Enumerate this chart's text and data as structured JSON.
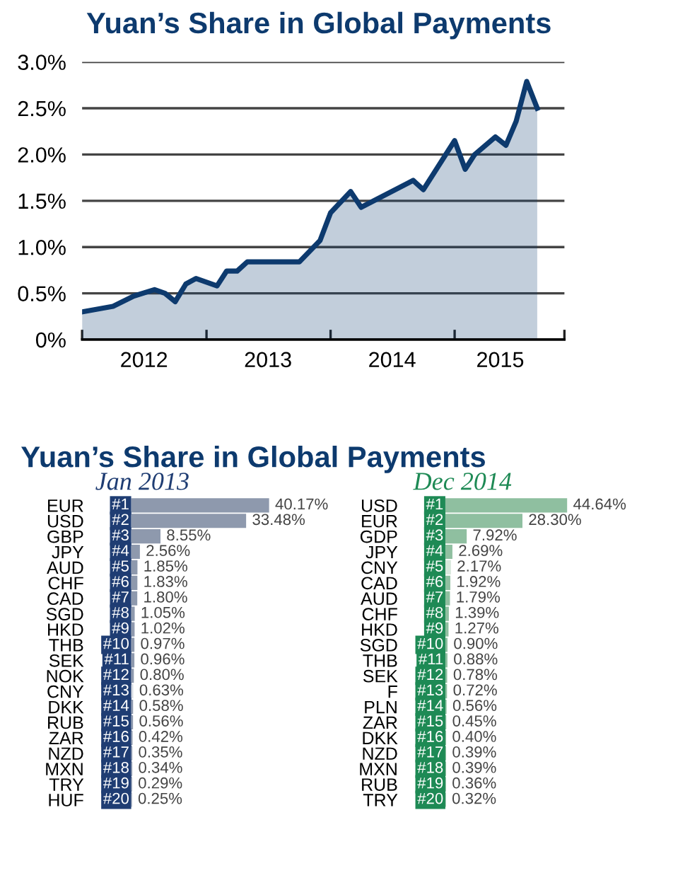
{
  "chart_data": [
    {
      "type": "area",
      "title": "Yuan’s Share in Global Payments",
      "x": [
        "2012-01",
        "2012-04",
        "2012-06",
        "2012-08",
        "2012-09",
        "2012-10",
        "2012-11",
        "2012-12",
        "2013-02",
        "2013-03",
        "2013-04",
        "2013-05",
        "2013-10",
        "2013-12",
        "2014-01",
        "2014-03",
        "2014-04",
        "2014-09",
        "2014-10",
        "2015-01",
        "2015-02",
        "2015-03",
        "2015-05",
        "2015-06",
        "2015-07",
        "2015-08",
        "2015-09"
      ],
      "series": [
        {
          "color": "#0d3a6e",
          "values": [
            0.3,
            0.36,
            0.47,
            0.54,
            0.5,
            0.41,
            0.6,
            0.66,
            0.58,
            0.74,
            0.74,
            0.84,
            0.84,
            1.07,
            1.37,
            1.6,
            1.43,
            1.72,
            1.62,
            2.15,
            1.84,
            2.0,
            2.19,
            2.1,
            2.36,
            2.79,
            2.5
          ]
        }
      ],
      "xlim": [
        "2012-01",
        "2015-11-20"
      ],
      "xticks": [
        {
          "value": "2012-01",
          "label": null
        },
        {
          "value": "2012-07",
          "label": "2012"
        },
        {
          "value": "2013-01",
          "label": null
        },
        {
          "value": "2013-07",
          "label": "2013"
        },
        {
          "value": "2014-01",
          "label": null
        },
        {
          "value": "2014-07",
          "label": "2014"
        },
        {
          "value": "2015-01",
          "label": null
        },
        {
          "value": "2015-05-15",
          "label": "2015"
        },
        {
          "value": "2015-11-20",
          "label": null
        }
      ],
      "ylim": [
        0,
        3
      ],
      "yticks": [
        {
          "value": 0,
          "label": "0%"
        },
        {
          "value": 0.5,
          "label": "0.5%"
        },
        {
          "value": 1,
          "label": "1.0%"
        },
        {
          "value": 1.5,
          "label": "1.5%"
        },
        {
          "value": 2,
          "label": "2.0%"
        },
        {
          "value": 2.5,
          "label": "2.5%"
        },
        {
          "value": 3,
          "label": "3.0%"
        }
      ],
      "grid": "y",
      "legend": false
    },
    {
      "type": "bar",
      "orientation": "horizontal",
      "title": "Yuan’s Share in Global Payments",
      "subtitle": "Jan 2013",
      "categories": [
        "EUR",
        "USD",
        "GBP",
        "JPY",
        "AUD",
        "CHF",
        "CAD",
        "SGD",
        "HKD",
        "THB",
        "SEK",
        "NOK",
        "CNY",
        "DKK",
        "RUB",
        "ZAR",
        "NZD",
        "MXN",
        "TRY",
        "HUF"
      ],
      "y2_categories": [
        "#1",
        "#2",
        "#3",
        "#4",
        "#5",
        "#6",
        "#7",
        "#8",
        "#9",
        "#10",
        "#11",
        "#12",
        "#13",
        "#14",
        "#15",
        "#16",
        "#17",
        "#18",
        "#19",
        "#20"
      ],
      "series": [
        {
          "color": "#1f3d73",
          "colors": [
            "#8e99ad",
            "#8e99ad",
            "#8e99ad",
            "#8e99ad",
            "#8e99ad",
            "#8e99ad",
            "#8e99ad",
            "#8e99ad",
            "#8e99ad",
            "#8e99ad",
            "#8e99ad",
            "#8e99ad",
            "#d9dde3",
            "#8e99ad",
            "#8e99ad",
            "#8e99ad",
            "#8e99ad",
            "#8e99ad",
            "#8e99ad",
            "#8e99ad"
          ],
          "values": [
            40.17,
            33.48,
            8.55,
            2.56,
            1.85,
            1.83,
            1.8,
            1.05,
            1.02,
            0.97,
            0.96,
            0.8,
            0.63,
            0.58,
            0.56,
            0.42,
            0.35,
            0.34,
            0.29,
            0.25
          ],
          "value_labels": [
            "40.17%",
            "33.48%",
            "8.55%",
            "2.56%",
            "1.85%",
            "1.83%",
            "1.80%",
            "1.05%",
            "1.02%",
            "0.97%",
            "0.96%",
            "0.80%",
            "0.63%",
            "0.58%",
            "0.56%",
            "0.42%",
            "0.35%",
            "0.34%",
            "0.29%",
            "0.25%"
          ]
        }
      ],
      "legend": false
    },
    {
      "type": "bar",
      "orientation": "horizontal",
      "subtitle": "Dec 2014",
      "categories": [
        "USD",
        "EUR",
        "GDP",
        "JPY",
        "CNY",
        "CAD",
        "AUD",
        "CHF",
        "HKD",
        "SGD",
        "THB",
        "SEK",
        "F",
        "PLN",
        "ZAR",
        "DKK",
        "NZD",
        "MXN",
        "RUB",
        "TRY"
      ],
      "y2_categories": [
        "#1",
        "#2",
        "#3",
        "#4",
        "#5",
        "#6",
        "#7",
        "#8",
        "#9",
        "#10",
        "#11",
        "#12",
        "#13",
        "#14",
        "#15",
        "#16",
        "#17",
        "#18",
        "#19",
        "#20"
      ],
      "series": [
        {
          "color": "#1e8a55",
          "colors": [
            "#8fbfa0",
            "#8fbfa0",
            "#8fbfa0",
            "#8fbfa0",
            "#d8e8dc",
            "#8fbfa0",
            "#8fbfa0",
            "#8fbfa0",
            "#8fbfa0",
            "#8fbfa0",
            "#8fbfa0",
            "#8fbfa0",
            "#8fbfa0",
            "#8fbfa0",
            "#8fbfa0",
            "#8fbfa0",
            "#8fbfa0",
            "#8fbfa0",
            "#8fbfa0",
            "#8fbfa0"
          ],
          "values": [
            44.64,
            28.3,
            7.92,
            2.69,
            2.17,
            1.92,
            1.79,
            1.39,
            1.27,
            0.9,
            0.88,
            0.78,
            0.72,
            0.56,
            0.45,
            0.4,
            0.39,
            0.39,
            0.36,
            0.32
          ],
          "value_labels": [
            "44.64%",
            "28.30%",
            "7.92%",
            "2.69%",
            "2.17%",
            "1.92%",
            "1.79%",
            "1.39%",
            "1.27%",
            "0.90%",
            "0.88%",
            "0.78%",
            "0.72%",
            "0.56%",
            "0.45%",
            "0.40%",
            "0.39%",
            "0.39%",
            "0.36%",
            "0.32%"
          ]
        }
      ],
      "legend": false
    }
  ]
}
